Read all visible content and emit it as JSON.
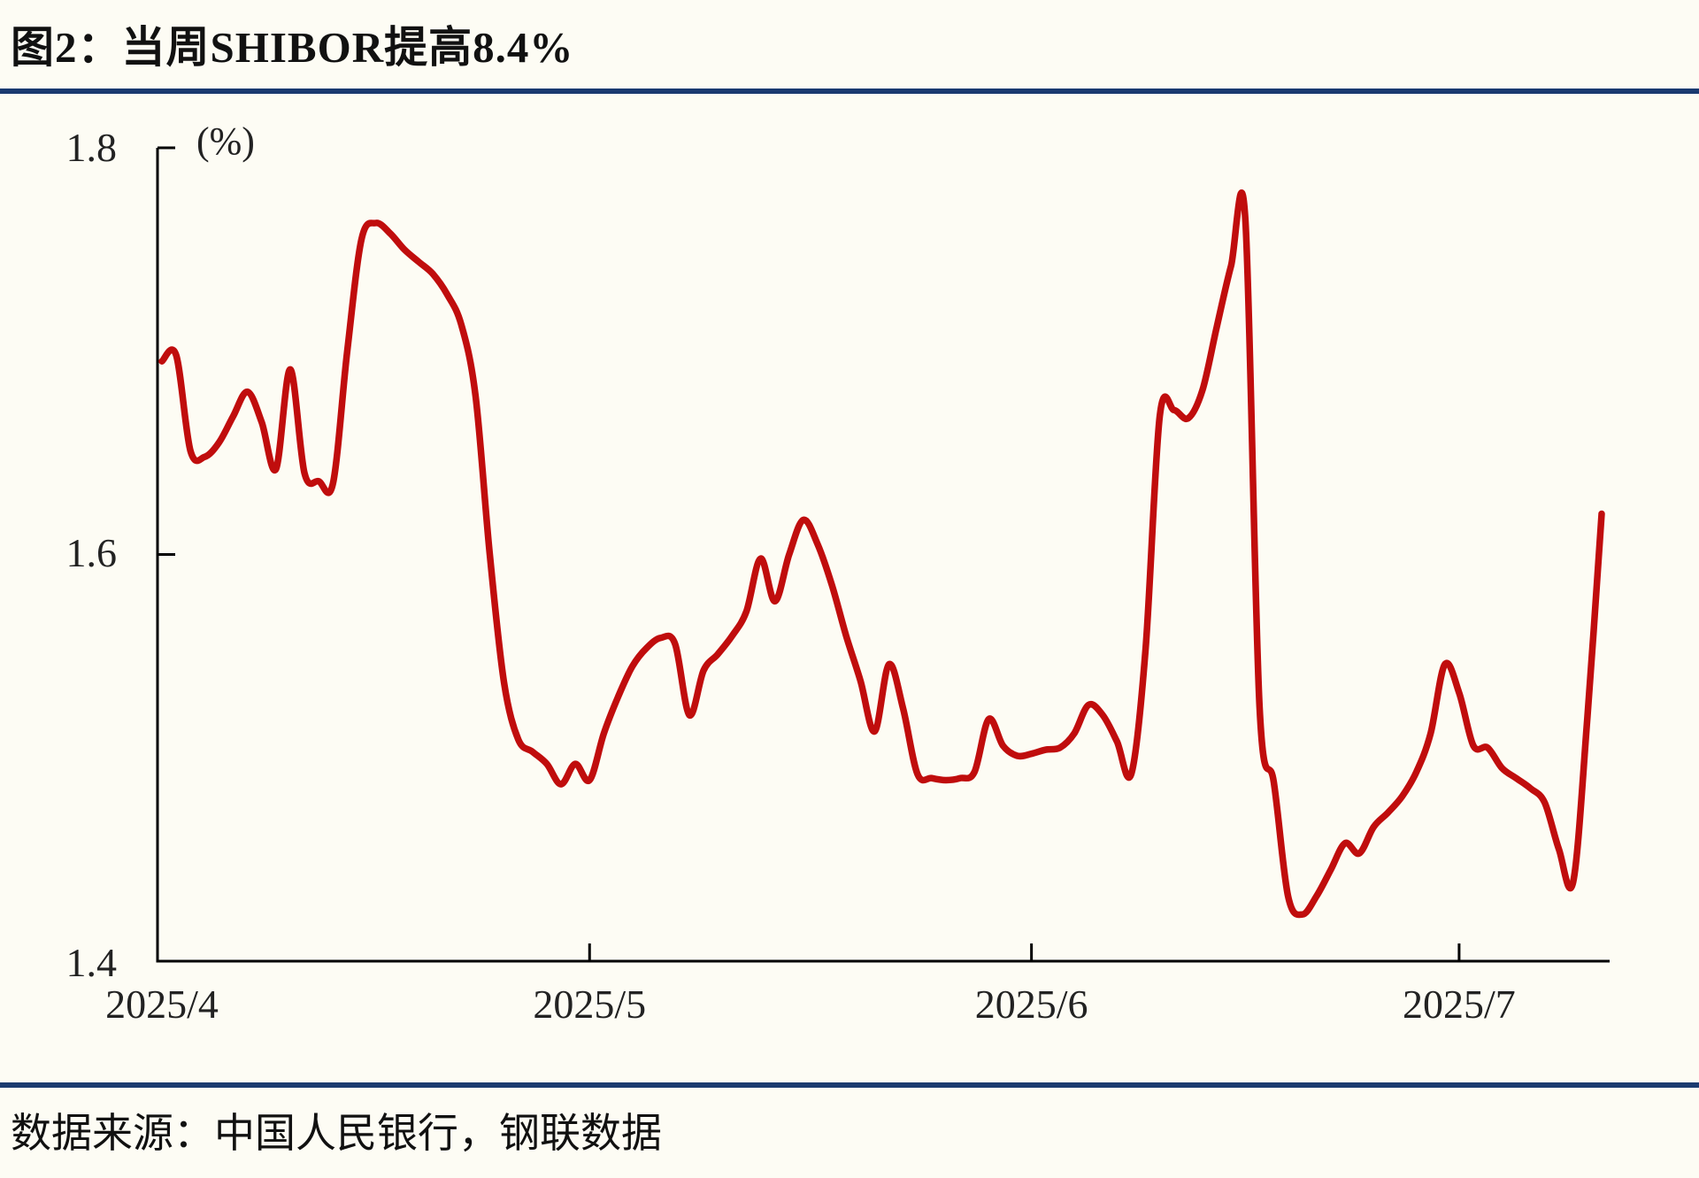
{
  "title": "图2：当周SHIBOR提高8.4%",
  "source": "数据来源：中国人民银行，钢联数据",
  "colors": {
    "background": "#fdfcf4",
    "line": "#c00d0d",
    "divider": "#1a3a70",
    "axis": "#000000",
    "text": "#1a1a1a"
  },
  "chart_data": {
    "type": "line",
    "title": "当周SHIBOR提高8.4%",
    "unit_label": "(%)",
    "ylim": [
      1.4,
      1.8
    ],
    "y_ticks": [
      "1.8",
      "1.6",
      "1.4"
    ],
    "x_ticks": [
      {
        "label": "2025/4",
        "day_index": 0
      },
      {
        "label": "2025/5",
        "day_index": 30
      },
      {
        "label": "2025/6",
        "day_index": 61
      },
      {
        "label": "2025/7",
        "day_index": 91
      }
    ],
    "grid": false,
    "legend_position": "none",
    "series": [
      {
        "name": "SHIBOR",
        "color": "#c00d0d",
        "points": [
          [
            "2025/4/1",
            1.695
          ],
          [
            "2025/4/2",
            1.698
          ],
          [
            "2025/4/3",
            1.651
          ],
          [
            "2025/4/4",
            1.648
          ],
          [
            "2025/4/5",
            1.655
          ],
          [
            "2025/4/6",
            1.668
          ],
          [
            "2025/4/7",
            1.68
          ],
          [
            "2025/4/8",
            1.665
          ],
          [
            "2025/4/9",
            1.642
          ],
          [
            "2025/4/10",
            1.691
          ],
          [
            "2025/4/11",
            1.64
          ],
          [
            "2025/4/12",
            1.636
          ],
          [
            "2025/4/13",
            1.635
          ],
          [
            "2025/4/14",
            1.7
          ],
          [
            "2025/4/15",
            1.755
          ],
          [
            "2025/4/16",
            1.763
          ],
          [
            "2025/4/17",
            1.758
          ],
          [
            "2025/4/18",
            1.75
          ],
          [
            "2025/4/19",
            1.744
          ],
          [
            "2025/4/20",
            1.738
          ],
          [
            "2025/4/21",
            1.728
          ],
          [
            "2025/4/22",
            1.713
          ],
          [
            "2025/4/23",
            1.678
          ],
          [
            "2025/4/24",
            1.6
          ],
          [
            "2025/4/25",
            1.537
          ],
          [
            "2025/4/26",
            1.509
          ],
          [
            "2025/4/27",
            1.503
          ],
          [
            "2025/4/28",
            1.497
          ],
          [
            "2025/4/29",
            1.487
          ],
          [
            "2025/4/30",
            1.497
          ],
          [
            "2025/5/1",
            1.489
          ],
          [
            "2025/5/2",
            1.512
          ],
          [
            "2025/5/3",
            1.53
          ],
          [
            "2025/5/4",
            1.545
          ],
          [
            "2025/5/5",
            1.554
          ],
          [
            "2025/5/6",
            1.559
          ],
          [
            "2025/5/7",
            1.556
          ],
          [
            "2025/5/8",
            1.521
          ],
          [
            "2025/5/9",
            1.543
          ],
          [
            "2025/5/10",
            1.551
          ],
          [
            "2025/5/11",
            1.56
          ],
          [
            "2025/5/12",
            1.572
          ],
          [
            "2025/5/13",
            1.598
          ],
          [
            "2025/5/14",
            1.577
          ],
          [
            "2025/5/15",
            1.6
          ],
          [
            "2025/5/16",
            1.617
          ],
          [
            "2025/5/17",
            1.605
          ],
          [
            "2025/5/18",
            1.585
          ],
          [
            "2025/5/19",
            1.56
          ],
          [
            "2025/5/20",
            1.538
          ],
          [
            "2025/5/21",
            1.513
          ],
          [
            "2025/5/22",
            1.546
          ],
          [
            "2025/5/23",
            1.524
          ],
          [
            "2025/5/24",
            1.492
          ],
          [
            "2025/5/25",
            1.49
          ],
          [
            "2025/5/26",
            1.489
          ],
          [
            "2025/5/27",
            1.49
          ],
          [
            "2025/5/28",
            1.493
          ],
          [
            "2025/5/29",
            1.519
          ],
          [
            "2025/5/30",
            1.506
          ],
          [
            "2025/5/31",
            1.501
          ],
          [
            "2025/6/1",
            1.502
          ],
          [
            "2025/6/2",
            1.504
          ],
          [
            "2025/6/3",
            1.505
          ],
          [
            "2025/6/4",
            1.512
          ],
          [
            "2025/6/5",
            1.526
          ],
          [
            "2025/6/6",
            1.521
          ],
          [
            "2025/6/7",
            1.508
          ],
          [
            "2025/6/8",
            1.492
          ],
          [
            "2025/6/9",
            1.553
          ],
          [
            "2025/6/10",
            1.668
          ],
          [
            "2025/6/11",
            1.671
          ],
          [
            "2025/6/12",
            1.667
          ],
          [
            "2025/6/13",
            1.681
          ],
          [
            "2025/6/14",
            1.712
          ],
          [
            "2025/6/15",
            1.742
          ],
          [
            "2025/6/16",
            1.765
          ],
          [
            "2025/6/17",
            1.525
          ],
          [
            "2025/6/18",
            1.488
          ],
          [
            "2025/6/19",
            1.432
          ],
          [
            "2025/6/20",
            1.423
          ],
          [
            "2025/6/21",
            1.432
          ],
          [
            "2025/6/22",
            1.445
          ],
          [
            "2025/6/23",
            1.458
          ],
          [
            "2025/6/24",
            1.453
          ],
          [
            "2025/6/25",
            1.466
          ],
          [
            "2025/6/26",
            1.473
          ],
          [
            "2025/6/27",
            1.481
          ],
          [
            "2025/6/28",
            1.493
          ],
          [
            "2025/6/29",
            1.512
          ],
          [
            "2025/6/30",
            1.546
          ],
          [
            "2025/7/1",
            1.532
          ],
          [
            "2025/7/2",
            1.506
          ],
          [
            "2025/7/3",
            1.505
          ],
          [
            "2025/7/4",
            1.495
          ],
          [
            "2025/7/5",
            1.49
          ],
          [
            "2025/7/6",
            1.485
          ],
          [
            "2025/7/7",
            1.478
          ],
          [
            "2025/7/8",
            1.455
          ],
          [
            "2025/7/9",
            1.439
          ],
          [
            "2025/7/10",
            1.52
          ],
          [
            "2025/7/11",
            1.62
          ]
        ]
      }
    ]
  }
}
